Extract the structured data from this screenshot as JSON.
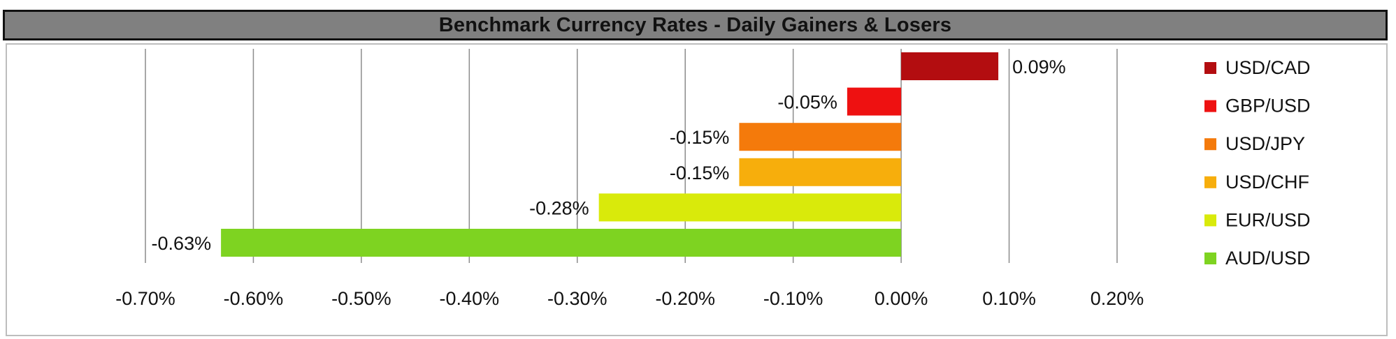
{
  "chart_data": {
    "type": "bar",
    "orientation": "horizontal",
    "title": "Benchmark Currency Rates - Daily Gainers & Losers",
    "categories": [
      "USD/CAD",
      "GBP/USD",
      "USD/JPY",
      "USD/CHF",
      "EUR/USD",
      "AUD/USD"
    ],
    "values": [
      0.09,
      -0.05,
      -0.15,
      -0.15,
      -0.28,
      -0.63
    ],
    "data_labels": [
      "0.09%",
      "-0.05%",
      "-0.15%",
      "-0.15%",
      "-0.28%",
      "-0.63%"
    ],
    "colors": [
      "#B30D10",
      "#EE1111",
      "#F47A0B",
      "#F7AE0C",
      "#D9EA0B",
      "#7ED321"
    ],
    "xlim": [
      -0.7,
      0.2
    ],
    "xticks": [
      -0.7,
      -0.6,
      -0.5,
      -0.4,
      -0.3,
      -0.2,
      -0.1,
      0.0,
      0.1,
      0.2
    ],
    "xtick_labels": [
      "-0.70%",
      "-0.60%",
      "-0.50%",
      "-0.40%",
      "-0.30%",
      "-0.20%",
      "-0.10%",
      "0.00%",
      "0.10%",
      "0.20%"
    ],
    "grid": "vertical",
    "legend_position": "right"
  }
}
